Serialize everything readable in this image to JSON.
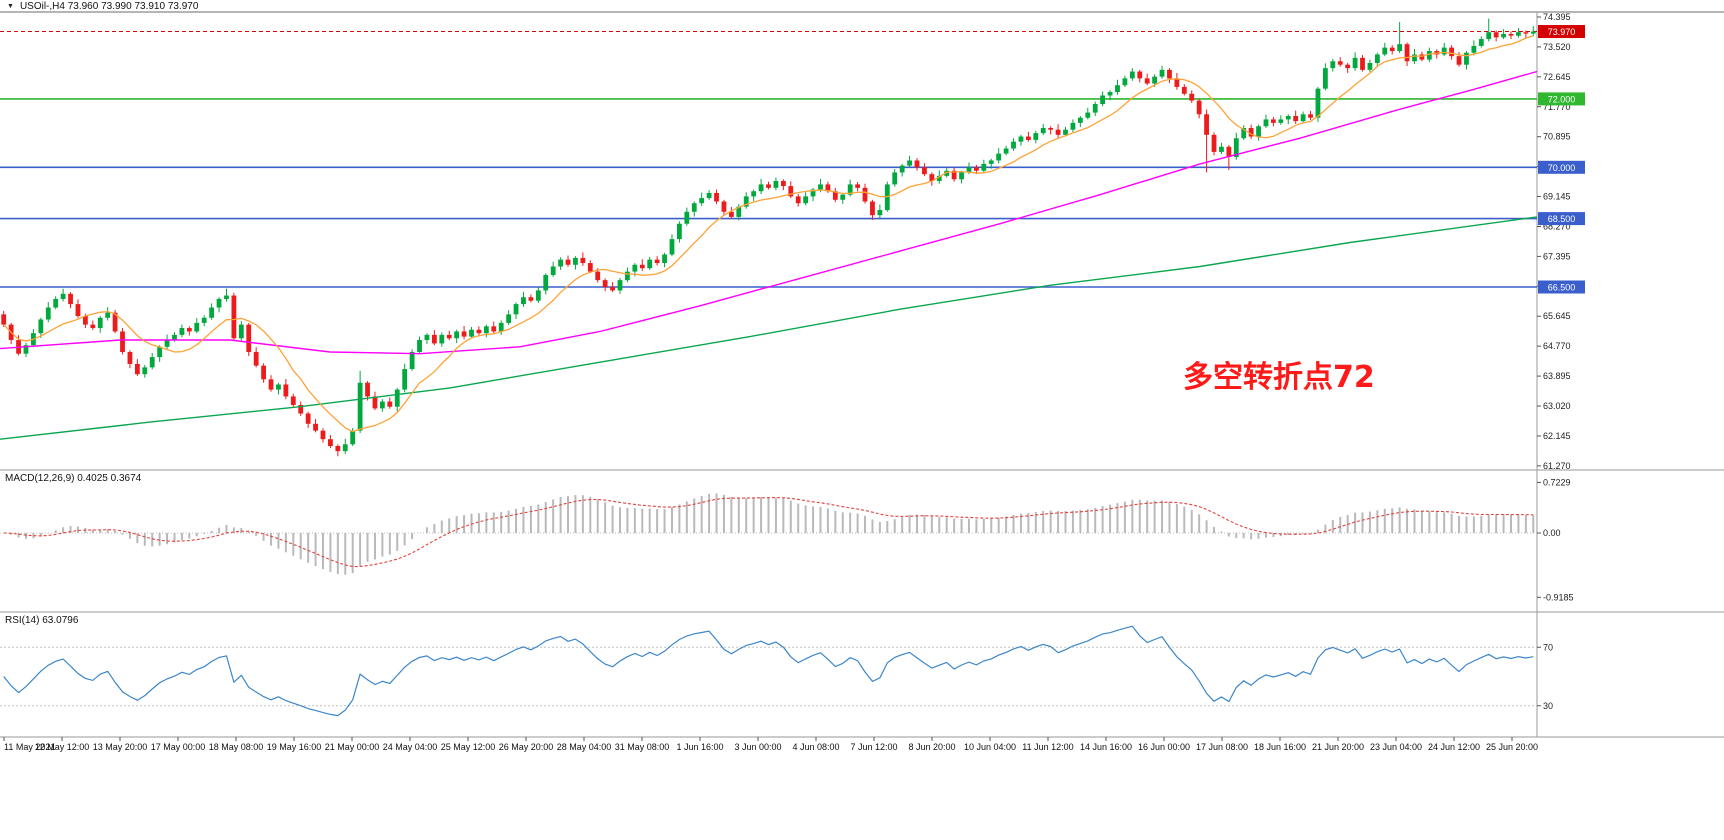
{
  "header": {
    "title": "USOil-,H4 73.960 73.990 73.910 73.970",
    "dropdown_icon": "▼"
  },
  "chart_data": {
    "type": "candlestick",
    "symbol": "USOil-",
    "timeframe": "H4",
    "quote": {
      "open": "73.960",
      "high": "73.990",
      "low": "73.910",
      "close": "73.970"
    },
    "price_axis_ticks": [
      {
        "label": "74.395",
        "value": 74.395
      },
      {
        "label": "73.520",
        "value": 73.52
      },
      {
        "label": "72.645",
        "value": 72.645
      },
      {
        "label": "71.770",
        "value": 71.77
      },
      {
        "label": "70.895",
        "value": 70.895
      },
      {
        "label": "70.020",
        "value": 70.02
      },
      {
        "label": "69.145",
        "value": 69.145
      },
      {
        "label": "68.270",
        "value": 68.27
      },
      {
        "label": "67.395",
        "value": 67.395
      },
      {
        "label": "66.520",
        "value": 66.52
      },
      {
        "label": "65.645",
        "value": 65.645
      },
      {
        "label": "64.770",
        "value": 64.77
      },
      {
        "label": "63.895",
        "value": 63.895
      },
      {
        "label": "63.020",
        "value": 63.02
      },
      {
        "label": "62.145",
        "value": 62.145
      },
      {
        "label": "61.270",
        "value": 61.27
      }
    ],
    "current_price": {
      "value": 73.97,
      "label": "73.970",
      "color": "#D40000"
    },
    "hlines": [
      {
        "value": 72.0,
        "label": "72.000",
        "color": "#2FB72F"
      },
      {
        "value": 70.0,
        "label": "70.000",
        "color": "#3A5FCD"
      },
      {
        "value": 68.5,
        "label": "68.500",
        "color": "#3A5FCD"
      },
      {
        "value": 66.5,
        "label": "66.500",
        "color": "#3A5FCD"
      }
    ],
    "time_axis_labels": [
      "11 May 2021",
      "12 May 12:00",
      "13 May 20:00",
      "17 May 00:00",
      "18 May 08:00",
      "19 May 16:00",
      "21 May 00:00",
      "24 May 04:00",
      "25 May 12:00",
      "26 May 20:00",
      "28 May 04:00",
      "31 May 08:00",
      "1 Jun 16:00",
      "3 Jun 00:00",
      "4 Jun 08:00",
      "7 Jun 12:00",
      "8 Jun 20:00",
      "10 Jun 04:00",
      "11 Jun 12:00",
      "14 Jun 16:00",
      "16 Jun 00:00",
      "17 Jun 08:00",
      "18 Jun 16:00",
      "21 Jun 20:00",
      "23 Jun 04:00",
      "24 Jun 12:00",
      "25 Jun 20:00"
    ],
    "candles": {
      "up_color": "#00A83E",
      "down_color": "#EC1C1C",
      "first_open": 65.7,
      "closes": [
        65.4,
        64.95,
        64.55,
        64.8,
        65.15,
        65.55,
        65.9,
        66.15,
        66.3,
        66.0,
        65.65,
        65.4,
        65.3,
        65.6,
        65.75,
        65.2,
        64.6,
        64.25,
        63.95,
        64.15,
        64.45,
        64.75,
        64.95,
        65.1,
        65.3,
        65.2,
        65.45,
        65.6,
        65.9,
        66.15,
        66.25,
        65.0,
        65.4,
        64.6,
        64.2,
        63.8,
        63.5,
        63.65,
        63.3,
        63.05,
        62.8,
        62.5,
        62.3,
        62.05,
        61.85,
        61.7,
        61.9,
        62.3,
        63.7,
        63.3,
        62.95,
        63.15,
        63.0,
        63.5,
        64.1,
        64.6,
        64.95,
        65.1,
        64.85,
        65.1,
        65.0,
        65.2,
        65.05,
        65.25,
        65.15,
        65.35,
        65.2,
        65.45,
        65.7,
        66.0,
        66.2,
        66.1,
        66.4,
        66.85,
        67.1,
        67.3,
        67.15,
        67.35,
        67.2,
        66.95,
        66.7,
        66.5,
        66.4,
        66.7,
        66.95,
        67.15,
        67.05,
        67.3,
        67.2,
        67.45,
        67.9,
        68.35,
        68.7,
        68.95,
        69.1,
        69.25,
        69.0,
        68.7,
        68.55,
        68.85,
        69.15,
        69.3,
        69.5,
        69.4,
        69.6,
        69.45,
        69.15,
        68.95,
        69.15,
        69.35,
        69.5,
        69.3,
        69.05,
        69.2,
        69.5,
        69.4,
        69.0,
        68.6,
        68.75,
        69.5,
        69.85,
        70.05,
        70.2,
        70.0,
        69.8,
        69.6,
        69.75,
        69.9,
        69.65,
        69.85,
        70.0,
        69.9,
        70.1,
        70.2,
        70.4,
        70.55,
        70.75,
        70.9,
        70.8,
        71.0,
        71.15,
        71.1,
        70.95,
        71.1,
        71.3,
        71.45,
        71.6,
        71.85,
        72.1,
        72.2,
        72.4,
        72.6,
        72.8,
        72.6,
        72.45,
        72.65,
        72.85,
        72.6,
        72.35,
        72.15,
        71.95,
        71.55,
        70.95,
        70.45,
        70.6,
        70.3,
        70.85,
        71.15,
        70.9,
        71.2,
        71.4,
        71.3,
        71.4,
        71.5,
        71.35,
        71.55,
        71.45,
        72.3,
        72.9,
        73.1,
        73.0,
        72.9,
        73.2,
        72.85,
        73.05,
        73.3,
        73.5,
        73.4,
        73.6,
        73.1,
        73.3,
        73.15,
        73.4,
        73.3,
        73.5,
        73.25,
        73.0,
        73.35,
        73.55,
        73.75,
        73.95,
        73.8,
        73.9,
        73.85,
        73.95,
        73.91,
        73.97
      ],
      "wick_up": [
        0.1,
        0.05,
        0.14,
        0.07,
        0.12,
        0.05,
        0.16,
        0.08
      ],
      "wick_dn": [
        0.07,
        0.12,
        0.05,
        0.1,
        0.06,
        0.14,
        0.08,
        0.05
      ],
      "overrides": {
        "8": {
          "high": 66.45
        },
        "30": {
          "high": 66.45
        },
        "45": {
          "low": 61.55
        },
        "48": {
          "high": 64.05
        },
        "162": {
          "low": 69.85
        },
        "165": {
          "low": 69.92
        },
        "188": {
          "high": 74.25
        },
        "200": {
          "high": 74.35
        }
      }
    },
    "moving_averages": {
      "fast": {
        "type": "SMA",
        "period": 9,
        "color": "#FFA237"
      },
      "mid": {
        "color": "#FF00FF",
        "path": [
          [
            0,
            64.7
          ],
          [
            120,
            64.95
          ],
          [
            230,
            64.95
          ],
          [
            330,
            64.6
          ],
          [
            420,
            64.55
          ],
          [
            520,
            64.75
          ],
          [
            600,
            65.2
          ],
          [
            700,
            65.95
          ],
          [
            800,
            66.75
          ],
          [
            900,
            67.55
          ],
          [
            1000,
            68.35
          ],
          [
            1100,
            69.2
          ],
          [
            1200,
            70.1
          ],
          [
            1300,
            70.85
          ],
          [
            1400,
            71.7
          ],
          [
            1470,
            72.25
          ],
          [
            1537,
            72.8
          ]
        ]
      },
      "slow": {
        "color": "#0AA64F",
        "path": [
          [
            0,
            62.05
          ],
          [
            150,
            62.55
          ],
          [
            300,
            63.0
          ],
          [
            450,
            63.55
          ],
          [
            600,
            64.3
          ],
          [
            750,
            65.05
          ],
          [
            900,
            65.85
          ],
          [
            1050,
            66.55
          ],
          [
            1200,
            67.1
          ],
          [
            1350,
            67.8
          ],
          [
            1537,
            68.55
          ]
        ]
      }
    },
    "macd": {
      "label": "MACD(12,26,9) 0.4025 0.3674",
      "fast": 12,
      "slow": 26,
      "signal": 9,
      "value_display": "0.4025",
      "signal_display": "0.3674",
      "axis_ticks": [
        {
          "label": "0.7229",
          "value": 0.7229
        },
        {
          "label": "0.00",
          "value": 0
        },
        {
          "label": "-0.9185",
          "value": -0.9185
        }
      ],
      "histogram_color": "#B9B9B9",
      "signal_color": "#E3423C"
    },
    "rsi": {
      "label": "RSI(14) 63.0796",
      "period": 14,
      "value_display": "63.0796",
      "color": "#3C86C8",
      "levels": [
        {
          "label": "70",
          "value": 70
        },
        {
          "label": "30",
          "value": 30
        }
      ]
    },
    "annotation": {
      "text": "多空转折点72",
      "color": "#FF1A1A"
    }
  }
}
